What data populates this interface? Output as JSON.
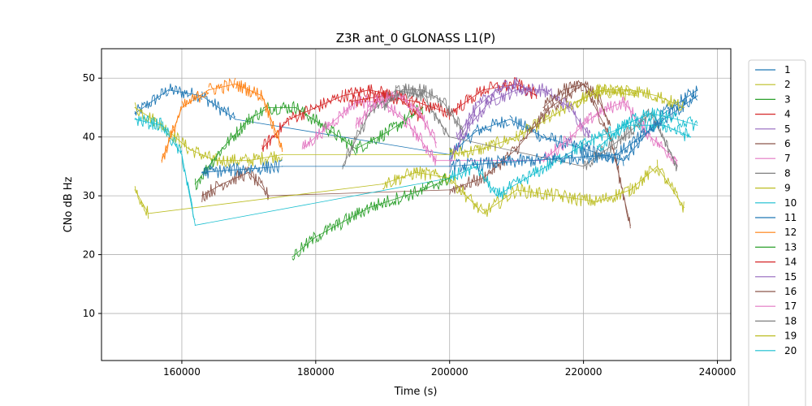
{
  "chart_data": {
    "type": "line",
    "title": "Z3R ant_0 GLONASS L1(P)",
    "xlabel": "Time (s)",
    "ylabel": "CNo dB Hz",
    "xlim": [
      148000,
      242000
    ],
    "ylim": [
      2,
      55
    ],
    "grid": true,
    "legend_position": "right",
    "xticks": [
      160000,
      180000,
      200000,
      220000,
      240000
    ],
    "xtick_labels": [
      "160000",
      "180000",
      "200000",
      "220000",
      "240000"
    ],
    "yticks": [
      10,
      20,
      30,
      40,
      50
    ],
    "ytick_labels": [
      "10",
      "20",
      "30",
      "40",
      "50"
    ],
    "series": [
      {
        "name": "1",
        "color": "#1f77b4",
        "x": [
          153000,
          158000,
          163000,
          168000,
          200000,
          204000,
          209000,
          214000,
          220000,
          226000,
          232000,
          237000
        ],
        "y": [
          44,
          48,
          47,
          43,
          37,
          41,
          43,
          40,
          38,
          36,
          44,
          48
        ]
      },
      {
        "name": "2",
        "color": "#bcbd22",
        "x": [
          153000,
          157000,
          161000,
          165000,
          170000,
          175000,
          200000,
          205000,
          210000,
          216000,
          222000,
          228000
        ],
        "y": [
          45,
          42,
          38,
          36,
          36,
          37,
          37,
          38,
          40,
          44,
          48,
          47
        ]
      },
      {
        "name": "3",
        "color": "#2ca02c",
        "x": [
          162000,
          166000,
          170000,
          173000,
          177000,
          181000,
          186000,
          191000,
          196000
        ],
        "y": [
          32,
          38,
          43,
          45,
          45,
          42,
          38,
          41,
          45
        ]
      },
      {
        "name": "4",
        "color": "#d62728",
        "x": [
          172000,
          176000,
          180000,
          184000,
          188000,
          192000,
          196000
        ],
        "y": [
          38,
          43,
          45,
          47,
          48,
          47,
          43
        ]
      },
      {
        "name": "5",
        "color": "#9467bd",
        "x": [
          200000,
          203000,
          206000,
          210000,
          214000,
          218000,
          221000
        ],
        "y": [
          36,
          42,
          46,
          48,
          48,
          45,
          40
        ]
      },
      {
        "name": "6",
        "color": "#8c564b",
        "x": [
          163000,
          166000,
          170000,
          173000,
          200000,
          205000,
          210000,
          215000,
          220000,
          224000,
          227000
        ],
        "y": [
          30,
          32,
          34,
          30,
          31,
          33,
          38,
          45,
          49,
          40,
          25
        ]
      },
      {
        "name": "7",
        "color": "#e377c2",
        "x": [
          178000,
          182000,
          186000,
          190000,
          194000,
          198000,
          214000,
          218000,
          222000,
          226000,
          230000,
          234000
        ],
        "y": [
          38,
          42,
          46,
          46,
          42,
          36,
          36,
          40,
          44,
          46,
          40,
          36
        ]
      },
      {
        "name": "8",
        "color": "#7f7f7f",
        "x": [
          184000,
          188000,
          192000,
          196000,
          200000,
          220000,
          226000,
          230000,
          234000
        ],
        "y": [
          35,
          44,
          48,
          47,
          40,
          35,
          40,
          44,
          35
        ]
      },
      {
        "name": "9",
        "color": "#bcbd22",
        "x": [
          153000,
          155000,
          190000,
          195000,
          200000,
          205000,
          210000,
          222000,
          227000,
          231000,
          235000
        ],
        "y": [
          31,
          27,
          32,
          34,
          33,
          27,
          31,
          29,
          31,
          35,
          28
        ]
      },
      {
        "name": "10",
        "color": "#17becf",
        "x": [
          153000,
          157000,
          160000,
          162000,
          200000,
          204000,
          207000,
          222000,
          227000,
          232000,
          236000
        ],
        "y": [
          43,
          42,
          37,
          25,
          33,
          35,
          30,
          40,
          42,
          42,
          40
        ]
      },
      {
        "name": "11",
        "color": "#1f77b4",
        "x": [
          163000,
          175000,
          200000,
          212000,
          225000,
          232000,
          237000
        ],
        "y": [
          34,
          35,
          35,
          36,
          37,
          43,
          47
        ]
      },
      {
        "name": "12",
        "color": "#ff7f0e",
        "x": [
          157000,
          160000,
          164000,
          168000,
          172000,
          175000
        ],
        "y": [
          36,
          45,
          48,
          49,
          47,
          38
        ]
      },
      {
        "name": "13",
        "color": "#2ca02c",
        "x": [
          176500,
          180000,
          188000,
          196000,
          200000
        ],
        "y": [
          19.6,
          23,
          28,
          31,
          33
        ]
      },
      {
        "name": "14",
        "color": "#d62728",
        "x": [
          185000,
          190000,
          195000,
          200000,
          205000,
          210000,
          213000
        ],
        "y": [
          46,
          47,
          46,
          44,
          48,
          49,
          47
        ]
      },
      {
        "name": "15",
        "color": "#9467bd",
        "x": [
          201000,
          204000,
          207000,
          210000,
          212000
        ],
        "y": [
          40,
          45,
          48,
          49,
          48
        ]
      },
      {
        "name": "16",
        "color": "#8c564b",
        "x": [
          214000,
          217000,
          220000,
          222000,
          224000
        ],
        "y": [
          45,
          48,
          49,
          47,
          42
        ]
      },
      {
        "name": "17",
        "color": "#e377c2",
        "x": [
          186000,
          189000,
          192000,
          195000,
          198000
        ],
        "y": [
          42,
          46,
          47,
          45,
          39
        ]
      },
      {
        "name": "18",
        "color": "#7f7f7f",
        "x": [
          190000,
          193000,
          196000,
          199000,
          202000
        ],
        "y": [
          45,
          48,
          48,
          46,
          41
        ]
      },
      {
        "name": "19",
        "color": "#bcbd22",
        "x": [
          219000,
          223000,
          227000,
          231000,
          235000
        ],
        "y": [
          46,
          48,
          48,
          47,
          45
        ]
      },
      {
        "name": "20",
        "color": "#17becf",
        "x": [
          222000,
          226000,
          230000,
          234000,
          237000
        ],
        "y": [
          38,
          42,
          44,
          43,
          42
        ]
      }
    ]
  }
}
